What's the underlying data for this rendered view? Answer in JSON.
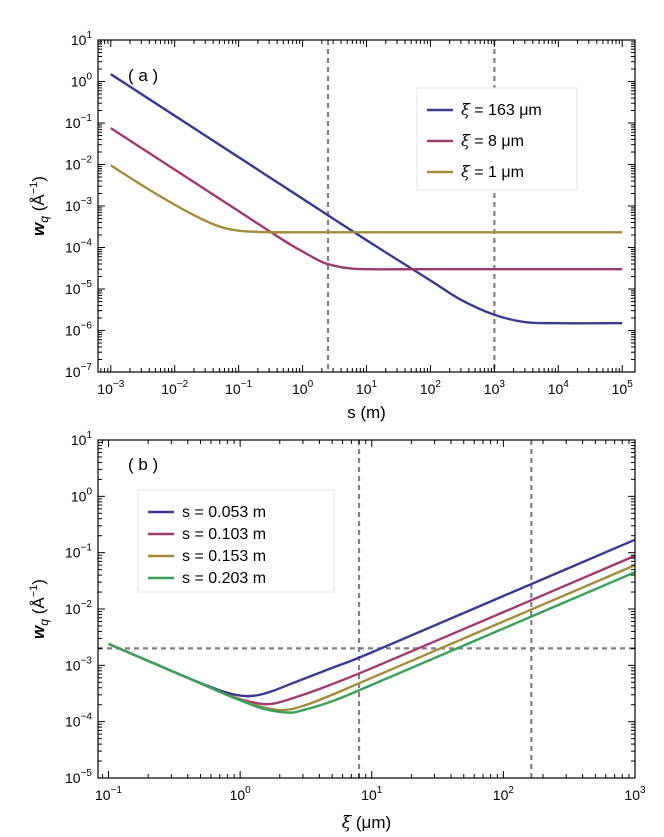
{
  "colors": {
    "blue": "#3b3b8e",
    "magenta": "#9e3b6e",
    "olive": "#a08c3c",
    "green": "#3c9e5c",
    "ref": "#808080"
  },
  "chart_data": [
    {
      "type": "line",
      "panel_label": "( a )",
      "xscale": "log",
      "yscale": "log",
      "xlim": [
        0.000631,
        158489
      ],
      "ylim": [
        1e-07,
        10
      ],
      "xlabel": "s (m)",
      "ylabel_main": "w",
      "ylabel_sub": "q",
      "ylabel_unit": " (Å",
      "ylabel_exp": "−1",
      "ylabel_close": ")",
      "xticks": [
        {
          "base": "10",
          "exp": "−3",
          "value": 0.001
        },
        {
          "base": "10",
          "exp": "−2",
          "value": 0.01
        },
        {
          "base": "10",
          "exp": "−1",
          "value": 0.1
        },
        {
          "base": "10",
          "exp": "0",
          "value": 1
        },
        {
          "base": "10",
          "exp": "1",
          "value": 10
        },
        {
          "base": "10",
          "exp": "2",
          "value": 100
        },
        {
          "base": "10",
          "exp": "3",
          "value": 1000
        },
        {
          "base": "10",
          "exp": "4",
          "value": 10000
        },
        {
          "base": "10",
          "exp": "5",
          "value": 100000
        }
      ],
      "yticks": [
        {
          "base": "10",
          "exp": "−7",
          "value": 1e-07
        },
        {
          "base": "10",
          "exp": "−6",
          "value": 1e-06
        },
        {
          "base": "10",
          "exp": "−5",
          "value": 1e-05
        },
        {
          "base": "10",
          "exp": "−4",
          "value": 0.0001
        },
        {
          "base": "10",
          "exp": "−3",
          "value": 0.001
        },
        {
          "base": "10",
          "exp": "−2",
          "value": 0.01
        },
        {
          "base": "10",
          "exp": "−1",
          "value": 0.1
        },
        {
          "base": "10",
          "exp": "0",
          "value": 1
        },
        {
          "base": "10",
          "exp": "1",
          "value": 10
        }
      ],
      "vlines": [
        2.5,
        1000
      ],
      "hlines": [],
      "legend_position": "top-right",
      "series": [
        {
          "name_sym": "ξ",
          "name_rest": " = 163 μm",
          "color": "blue",
          "x": [
            0.001,
            0.01,
            0.1,
            1,
            10,
            100,
            300,
            1000,
            3000,
            10000,
            100000
          ],
          "y": [
            1.5,
            0.15,
            0.015,
            0.0015,
            0.00015,
            1.6e-05,
            5.5e-06,
            2.4e-06,
            1.6e-06,
            1.5e-06,
            1.5e-06
          ]
        },
        {
          "name_sym": "ξ",
          "name_rest": " = 8 μm",
          "color": "magenta",
          "x": [
            0.001,
            0.01,
            0.1,
            0.5,
            1,
            2,
            3,
            5,
            10,
            100,
            1000,
            100000
          ],
          "y": [
            0.075,
            0.0075,
            0.00075,
            0.00015,
            8e-05,
            4.5e-05,
            3.7e-05,
            3.2e-05,
            3e-05,
            3e-05,
            3e-05,
            3e-05
          ]
        },
        {
          "name_sym": "ξ",
          "name_rest": " = 1 μm",
          "color": "olive",
          "x": [
            0.001,
            0.005,
            0.02,
            0.05,
            0.1,
            0.2,
            0.5,
            1,
            100000
          ],
          "y": [
            0.0095,
            0.002,
            0.0006,
            0.00032,
            0.000255,
            0.000238,
            0.000232,
            0.000232,
            0.000232
          ]
        }
      ]
    },
    {
      "type": "line",
      "panel_label": "( b )",
      "xscale": "log",
      "yscale": "log",
      "xlim": [
        0.0832,
        1000
      ],
      "ylim": [
        1e-05,
        10
      ],
      "xlabel_sym": "ξ",
      "xlabel_rest": " (μm)",
      "ylabel_main": "w",
      "ylabel_sub": "q",
      "ylabel_unit": " (Å",
      "ylabel_exp": "−1",
      "ylabel_close": ")",
      "xticks": [
        {
          "base": "10",
          "exp": "−1",
          "value": 0.1
        },
        {
          "base": "10",
          "exp": "0",
          "value": 1
        },
        {
          "base": "10",
          "exp": "1",
          "value": 10
        },
        {
          "base": "10",
          "exp": "2",
          "value": 100
        },
        {
          "base": "10",
          "exp": "3",
          "value": 1000
        }
      ],
      "yticks": [
        {
          "base": "10",
          "exp": "−5",
          "value": 1e-05
        },
        {
          "base": "10",
          "exp": "−4",
          "value": 0.0001
        },
        {
          "base": "10",
          "exp": "−3",
          "value": 0.001
        },
        {
          "base": "10",
          "exp": "−2",
          "value": 0.01
        },
        {
          "base": "10",
          "exp": "−1",
          "value": 0.1
        },
        {
          "base": "10",
          "exp": "0",
          "value": 1
        },
        {
          "base": "10",
          "exp": "1",
          "value": 10
        }
      ],
      "vlines": [
        8,
        163
      ],
      "hlines": [
        0.002
      ],
      "legend_position": "top-left",
      "series": [
        {
          "name": "s = 0.053 m",
          "color": "blue",
          "x": [
            0.1,
            0.2,
            0.4,
            0.7,
            1,
            1.3,
            1.7,
            2.5,
            5,
            10,
            100,
            1000
          ],
          "y": [
            0.0024,
            0.0012,
            0.0006,
            0.00036,
            0.00029,
            0.00029,
            0.00034,
            0.00048,
            0.0009,
            0.0017,
            0.017,
            0.17
          ]
        },
        {
          "name": "s = 0.103 m",
          "color": "magenta",
          "x": [
            0.1,
            0.2,
            0.4,
            0.7,
            1,
            1.4,
            1.8,
            2.5,
            4,
            10,
            100,
            1000
          ],
          "y": [
            0.0024,
            0.0012,
            0.0006,
            0.00034,
            0.00025,
            0.00021,
            0.00021,
            0.00026,
            0.00038,
            0.00089,
            0.0088,
            0.088
          ]
        },
        {
          "name": "s = 0.153 m",
          "color": "olive",
          "x": [
            0.1,
            0.2,
            0.4,
            0.7,
            1,
            1.5,
            2.1,
            3,
            5,
            10,
            100,
            1000
          ],
          "y": [
            0.0024,
            0.0012,
            0.0006,
            0.00034,
            0.00024,
            0.00018,
            0.00016,
            0.00019,
            0.0003,
            0.0006,
            0.006,
            0.06
          ]
        },
        {
          "name": "s = 0.203 m",
          "color": "green",
          "x": [
            0.1,
            0.2,
            0.4,
            0.7,
            1,
            1.5,
            2.3,
            3,
            5,
            10,
            100,
            1000
          ],
          "y": [
            0.0024,
            0.0012,
            0.0006,
            0.00034,
            0.00024,
            0.00017,
            0.000145,
            0.00016,
            0.00023,
            0.00045,
            0.0045,
            0.045
          ]
        }
      ]
    }
  ]
}
